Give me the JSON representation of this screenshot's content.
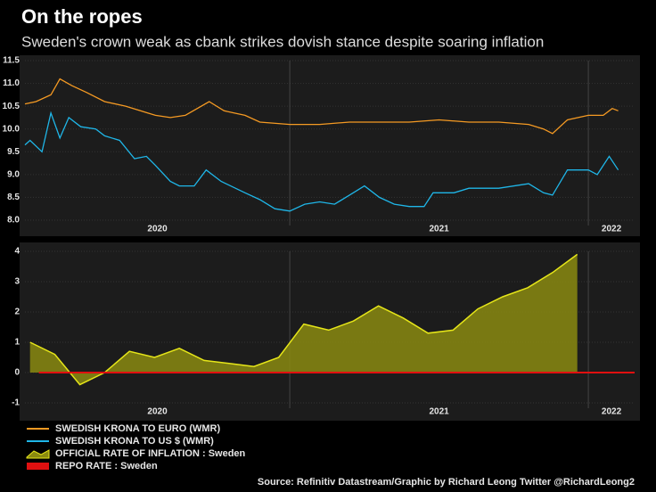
{
  "title": "On the ropes",
  "subtitle": "Sweden's crown weak as cbank strikes dovish stance despite soaring inflation",
  "source": "Source: Refinitiv Datastream/Graphic by Richard Leong Twitter @RichardLeong2",
  "chart_data": [
    {
      "type": "line",
      "xlim": [
        2020.113,
        2022.155
      ],
      "xticks": [
        {
          "value": 2020,
          "label": "2020"
        },
        {
          "value": 2021,
          "label": "2021"
        },
        {
          "value": 2022,
          "label": "2022"
        }
      ],
      "ylim": [
        8,
        11.5
      ],
      "yticks": [
        {
          "value": 8,
          "label": "8.0"
        },
        {
          "value": 8.5,
          "label": "8.5"
        },
        {
          "value": 9,
          "label": "9.0"
        },
        {
          "value": 9.5,
          "label": "9.5"
        },
        {
          "value": 10,
          "label": "10.0"
        },
        {
          "value": 10.5,
          "label": "10.5"
        },
        {
          "value": 11,
          "label": "11.0"
        },
        {
          "value": 11.5,
          "label": "11.5"
        }
      ],
      "grid": true,
      "series": [
        {
          "name": "SWEDISH KRONA TO EURO (WMR)",
          "color": "#f59a23",
          "kind": "line",
          "x": [
            2020.113,
            2020.15,
            2020.2,
            2020.23,
            2020.27,
            2020.32,
            2020.38,
            2020.45,
            2020.5,
            2020.55,
            2020.6,
            2020.65,
            2020.73,
            2020.78,
            2020.85,
            2020.9,
            2021.0,
            2021.1,
            2021.2,
            2021.3,
            2021.4,
            2021.5,
            2021.6,
            2021.7,
            2021.8,
            2021.85,
            2021.88,
            2021.93,
            2022.0,
            2022.05,
            2022.08,
            2022.1
          ],
          "values": [
            10.55,
            10.6,
            10.75,
            11.1,
            10.95,
            10.8,
            10.6,
            10.5,
            10.4,
            10.3,
            10.25,
            10.3,
            10.6,
            10.4,
            10.3,
            10.15,
            10.1,
            10.1,
            10.15,
            10.15,
            10.15,
            10.2,
            10.15,
            10.15,
            10.1,
            10.0,
            9.9,
            10.2,
            10.3,
            10.3,
            10.45,
            10.4
          ]
        },
        {
          "name": "SWEDISH KRONA TO US $ (WMR)",
          "color": "#1fb6e8",
          "kind": "line",
          "x": [
            2020.113,
            2020.13,
            2020.17,
            2020.2,
            2020.23,
            2020.26,
            2020.3,
            2020.35,
            2020.38,
            2020.43,
            2020.48,
            2020.52,
            2020.55,
            2020.6,
            2020.63,
            2020.68,
            2020.72,
            2020.77,
            2020.85,
            2020.9,
            2020.95,
            2021.0,
            2021.05,
            2021.1,
            2021.15,
            2021.2,
            2021.25,
            2021.3,
            2021.35,
            2021.4,
            2021.45,
            2021.48,
            2021.55,
            2021.6,
            2021.7,
            2021.8,
            2021.85,
            2021.88,
            2021.93,
            2022.0,
            2022.03,
            2022.07,
            2022.1
          ],
          "values": [
            9.65,
            9.75,
            9.5,
            10.35,
            9.8,
            10.25,
            10.05,
            10.0,
            9.85,
            9.75,
            9.35,
            9.4,
            9.2,
            8.85,
            8.75,
            8.75,
            9.1,
            8.85,
            8.6,
            8.45,
            8.25,
            8.2,
            8.35,
            8.4,
            8.35,
            8.55,
            8.75,
            8.5,
            8.35,
            8.3,
            8.3,
            8.6,
            8.6,
            8.7,
            8.7,
            8.8,
            8.6,
            8.55,
            9.1,
            9.1,
            9.0,
            9.4,
            9.1
          ]
        }
      ]
    },
    {
      "type": "area",
      "xlim": [
        2020.113,
        2022.155
      ],
      "xticks": [
        {
          "value": 2020,
          "label": "2020"
        },
        {
          "value": 2021,
          "label": "2021"
        },
        {
          "value": 2022,
          "label": "2022"
        }
      ],
      "ylim": [
        -1,
        4
      ],
      "yticks": [
        -1,
        0,
        1,
        2,
        3,
        4
      ],
      "grid": true,
      "series": [
        {
          "name": "OFFICIAL RATE OF INFLATION : Sweden",
          "color": "#e6e619",
          "kind": "area",
          "x": [
            2020.13,
            2020.213,
            2020.297,
            2020.38,
            2020.463,
            2020.547,
            2020.63,
            2020.713,
            2020.797,
            2020.88,
            2020.963,
            2021.047,
            2021.13,
            2021.213,
            2021.297,
            2021.38,
            2021.463,
            2021.547,
            2021.63,
            2021.713,
            2021.797,
            2021.88,
            2021.963
          ],
          "values": [
            1.0,
            0.6,
            -0.4,
            0.0,
            0.7,
            0.5,
            0.8,
            0.4,
            0.3,
            0.2,
            0.5,
            1.6,
            1.4,
            1.7,
            2.2,
            1.8,
            1.3,
            1.4,
            2.1,
            2.5,
            2.8,
            3.3,
            3.9
          ]
        },
        {
          "name": "REPO RATE : Sweden",
          "color": "#e01010",
          "kind": "line",
          "x": [
            2020.16,
            2022.155
          ],
          "values": [
            0,
            0
          ]
        }
      ]
    }
  ]
}
